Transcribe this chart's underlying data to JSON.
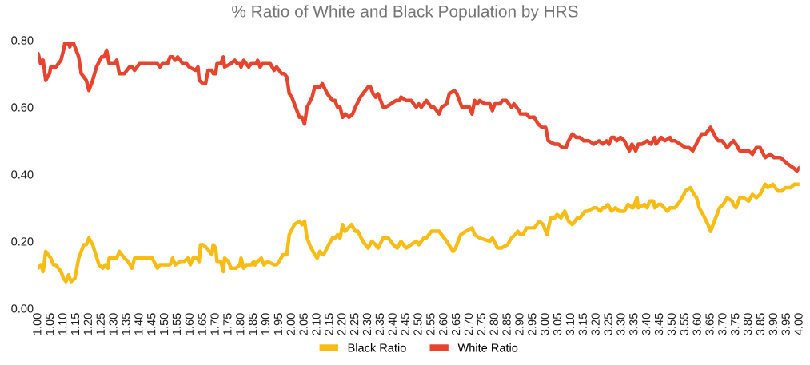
{
  "chart_data": {
    "type": "line",
    "title": "% Ratio of White and Black Population by HRS",
    "xlim": [
      1.0,
      4.0
    ],
    "xticks": [
      {
        "value": 1.0,
        "label": "1.00"
      },
      {
        "value": 1.05,
        "label": "1.05"
      },
      {
        "value": 1.1,
        "label": "1.10"
      },
      {
        "value": 1.15,
        "label": "1.15"
      },
      {
        "value": 1.2,
        "label": "1.20"
      },
      {
        "value": 1.25,
        "label": "1.25"
      },
      {
        "value": 1.3,
        "label": "1.30"
      },
      {
        "value": 1.35,
        "label": "1.35"
      },
      {
        "value": 1.4,
        "label": "1.40"
      },
      {
        "value": 1.45,
        "label": "1.45"
      },
      {
        "value": 1.5,
        "label": "1.50"
      },
      {
        "value": 1.55,
        "label": "1.55"
      },
      {
        "value": 1.6,
        "label": "1.60"
      },
      {
        "value": 1.65,
        "label": "1.65"
      },
      {
        "value": 1.7,
        "label": "1.70"
      },
      {
        "value": 1.75,
        "label": "1.75"
      },
      {
        "value": 1.8,
        "label": "1.80"
      },
      {
        "value": 1.85,
        "label": "1.85"
      },
      {
        "value": 1.9,
        "label": "1.90"
      },
      {
        "value": 1.95,
        "label": "1.95"
      },
      {
        "value": 2.0,
        "label": "2.00"
      },
      {
        "value": 2.05,
        "label": "2.05"
      },
      {
        "value": 2.1,
        "label": "2.10"
      },
      {
        "value": 2.15,
        "label": "2.15"
      },
      {
        "value": 2.2,
        "label": "2.20"
      },
      {
        "value": 2.25,
        "label": "2.25"
      },
      {
        "value": 2.3,
        "label": "2.30"
      },
      {
        "value": 2.35,
        "label": "2.35"
      },
      {
        "value": 2.4,
        "label": "2.40"
      },
      {
        "value": 2.45,
        "label": "2.45"
      },
      {
        "value": 2.5,
        "label": "2.50"
      },
      {
        "value": 2.55,
        "label": "2.55"
      },
      {
        "value": 2.6,
        "label": "2.60"
      },
      {
        "value": 2.65,
        "label": "2.65"
      },
      {
        "value": 2.7,
        "label": "2.70"
      },
      {
        "value": 2.75,
        "label": "2.75"
      },
      {
        "value": 2.8,
        "label": "2.80"
      },
      {
        "value": 2.85,
        "label": "2.85"
      },
      {
        "value": 2.9,
        "label": "2.90"
      },
      {
        "value": 2.95,
        "label": "2.95"
      },
      {
        "value": 3.0,
        "label": "3.00"
      },
      {
        "value": 3.05,
        "label": "3.05"
      },
      {
        "value": 3.1,
        "label": "3.10"
      },
      {
        "value": 3.15,
        "label": "3.15"
      },
      {
        "value": 3.2,
        "label": "3.20"
      },
      {
        "value": 3.25,
        "label": "3.25"
      },
      {
        "value": 3.3,
        "label": "3.30"
      },
      {
        "value": 3.35,
        "label": "3.35"
      },
      {
        "value": 3.4,
        "label": "3.40"
      },
      {
        "value": 3.45,
        "label": "3.45"
      },
      {
        "value": 3.5,
        "label": "3.50"
      },
      {
        "value": 3.55,
        "label": "3.55"
      },
      {
        "value": 3.6,
        "label": "3.60"
      },
      {
        "value": 3.65,
        "label": "3.65"
      },
      {
        "value": 3.7,
        "label": "3.70"
      },
      {
        "value": 3.75,
        "label": "3.75"
      },
      {
        "value": 3.8,
        "label": "3.80"
      },
      {
        "value": 3.85,
        "label": "3.85"
      },
      {
        "value": 3.9,
        "label": "3.90"
      },
      {
        "value": 3.95,
        "label": "3.95"
      },
      {
        "value": 4.0,
        "label": "4.00"
      }
    ],
    "ylim": [
      0,
      0.8
    ],
    "yticks": [
      {
        "value": 0,
        "label": "0.00"
      },
      {
        "value": 0.2,
        "label": "0.20"
      },
      {
        "value": 0.4,
        "label": "0.40"
      },
      {
        "value": 0.6,
        "label": "0.60"
      },
      {
        "value": 0.8,
        "label": "0.80"
      }
    ],
    "grid": false,
    "legend": "bottom",
    "marker": "none",
    "line_style": "solid",
    "series": [
      {
        "name": "Black Ratio",
        "color": "#f9bc15",
        "x": [
          1.0,
          1.01,
          1.02,
          1.03,
          1.05,
          1.06,
          1.07,
          1.09,
          1.1,
          1.11,
          1.12,
          1.13,
          1.145,
          1.16,
          1.18,
          1.19,
          1.2,
          1.215,
          1.24,
          1.255,
          1.265,
          1.275,
          1.28,
          1.3,
          1.31,
          1.32,
          1.34,
          1.355,
          1.37,
          1.38,
          1.39,
          1.4,
          1.42,
          1.435,
          1.45,
          1.47,
          1.48,
          1.5,
          1.52,
          1.53,
          1.54,
          1.56,
          1.575,
          1.59,
          1.6,
          1.61,
          1.625,
          1.635,
          1.64,
          1.65,
          1.665,
          1.685,
          1.69,
          1.7,
          1.705,
          1.72,
          1.73,
          1.735,
          1.75,
          1.76,
          1.78,
          1.795,
          1.8,
          1.81,
          1.82,
          1.84,
          1.85,
          1.855,
          1.865,
          1.88,
          1.89,
          1.905,
          1.93,
          1.94,
          1.95,
          1.965,
          1.98,
          1.99,
          2.01,
          2.03,
          2.04,
          2.05,
          2.06,
          2.07,
          2.09,
          2.1,
          2.11,
          2.125,
          2.145,
          2.16,
          2.17,
          2.18,
          2.19,
          2.2,
          2.21,
          2.235,
          2.25,
          2.26,
          2.28,
          2.3,
          2.315,
          2.33,
          2.34,
          2.36,
          2.38,
          2.4,
          2.415,
          2.43,
          2.45,
          2.47,
          2.49,
          2.5,
          2.52,
          2.53,
          2.55,
          2.57,
          2.58,
          2.61,
          2.635,
          2.645,
          2.665,
          2.685,
          2.71,
          2.72,
          2.74,
          2.78,
          2.79,
          2.81,
          2.825,
          2.85,
          2.865,
          2.88,
          2.89,
          2.9,
          2.91,
          2.925,
          2.935,
          2.955,
          2.975,
          2.99,
          3.005,
          3.02,
          3.035,
          3.045,
          3.06,
          3.075,
          3.09,
          3.105,
          3.125,
          3.135,
          3.155,
          3.165,
          3.19,
          3.2,
          3.215,
          3.225,
          3.235,
          3.245,
          3.26,
          3.275,
          3.29,
          3.3,
          3.31,
          3.325,
          3.34,
          3.345,
          3.36,
          3.365,
          3.39,
          3.4,
          3.41,
          3.425,
          3.43,
          3.445,
          3.455,
          3.48,
          3.49,
          3.51,
          3.53,
          3.545,
          3.55,
          3.57,
          3.585,
          3.595,
          3.605,
          3.62,
          3.64,
          3.65,
          3.66,
          3.675,
          3.685,
          3.7,
          3.715,
          3.735,
          3.74,
          3.75,
          3.765,
          3.78,
          3.8,
          3.815,
          3.83,
          3.845,
          3.865,
          3.875,
          3.895,
          3.915,
          3.93,
          3.945,
          3.965,
          3.98,
          4.0
        ],
        "values": [
          0.12,
          0.13,
          0.11,
          0.17,
          0.15,
          0.13,
          0.13,
          0.11,
          0.09,
          0.08,
          0.1,
          0.08,
          0.09,
          0.15,
          0.19,
          0.19,
          0.21,
          0.19,
          0.13,
          0.12,
          0.13,
          0.12,
          0.15,
          0.15,
          0.15,
          0.17,
          0.15,
          0.14,
          0.12,
          0.15,
          0.15,
          0.15,
          0.15,
          0.15,
          0.15,
          0.12,
          0.13,
          0.13,
          0.13,
          0.15,
          0.13,
          0.14,
          0.14,
          0.15,
          0.13,
          0.15,
          0.15,
          0.14,
          0.19,
          0.19,
          0.18,
          0.16,
          0.19,
          0.18,
          0.14,
          0.14,
          0.11,
          0.15,
          0.14,
          0.12,
          0.12,
          0.13,
          0.15,
          0.12,
          0.13,
          0.13,
          0.14,
          0.13,
          0.14,
          0.15,
          0.13,
          0.14,
          0.13,
          0.13,
          0.14,
          0.16,
          0.16,
          0.22,
          0.25,
          0.26,
          0.25,
          0.26,
          0.21,
          0.19,
          0.16,
          0.15,
          0.17,
          0.16,
          0.19,
          0.21,
          0.21,
          0.22,
          0.21,
          0.25,
          0.23,
          0.25,
          0.23,
          0.23,
          0.2,
          0.18,
          0.2,
          0.19,
          0.18,
          0.21,
          0.21,
          0.19,
          0.18,
          0.2,
          0.18,
          0.19,
          0.2,
          0.19,
          0.21,
          0.21,
          0.23,
          0.23,
          0.23,
          0.2,
          0.17,
          0.18,
          0.22,
          0.23,
          0.24,
          0.22,
          0.21,
          0.2,
          0.21,
          0.18,
          0.18,
          0.19,
          0.21,
          0.22,
          0.23,
          0.22,
          0.22,
          0.24,
          0.24,
          0.24,
          0.26,
          0.25,
          0.22,
          0.27,
          0.27,
          0.28,
          0.27,
          0.29,
          0.26,
          0.25,
          0.27,
          0.27,
          0.29,
          0.29,
          0.3,
          0.3,
          0.29,
          0.3,
          0.3,
          0.31,
          0.29,
          0.3,
          0.29,
          0.29,
          0.29,
          0.31,
          0.3,
          0.3,
          0.33,
          0.3,
          0.31,
          0.3,
          0.32,
          0.32,
          0.3,
          0.31,
          0.31,
          0.29,
          0.3,
          0.3,
          0.32,
          0.34,
          0.35,
          0.36,
          0.34,
          0.33,
          0.3,
          0.28,
          0.25,
          0.23,
          0.25,
          0.28,
          0.3,
          0.31,
          0.33,
          0.32,
          0.31,
          0.3,
          0.33,
          0.33,
          0.32,
          0.34,
          0.33,
          0.34,
          0.37,
          0.36,
          0.37,
          0.35,
          0.35,
          0.36,
          0.36,
          0.37,
          0.37
        ]
      },
      {
        "name": "White Ratio",
        "color": "#e8432d",
        "x": [
          1.0,
          1.01,
          1.02,
          1.03,
          1.045,
          1.05,
          1.07,
          1.09,
          1.1,
          1.105,
          1.12,
          1.125,
          1.13,
          1.14,
          1.16,
          1.17,
          1.18,
          1.19,
          1.2,
          1.215,
          1.23,
          1.25,
          1.26,
          1.27,
          1.28,
          1.3,
          1.31,
          1.32,
          1.34,
          1.36,
          1.37,
          1.38,
          1.4,
          1.42,
          1.435,
          1.455,
          1.47,
          1.48,
          1.49,
          1.51,
          1.52,
          1.53,
          1.54,
          1.55,
          1.57,
          1.585,
          1.595,
          1.62,
          1.63,
          1.635,
          1.65,
          1.66,
          1.67,
          1.685,
          1.69,
          1.7,
          1.705,
          1.72,
          1.73,
          1.735,
          1.76,
          1.775,
          1.785,
          1.795,
          1.8,
          1.81,
          1.82,
          1.83,
          1.84,
          1.86,
          1.865,
          1.875,
          1.885,
          1.9,
          1.915,
          1.93,
          1.94,
          1.96,
          1.97,
          1.98,
          1.99,
          2.0,
          2.03,
          2.04,
          2.05,
          2.06,
          2.08,
          2.09,
          2.11,
          2.12,
          2.14,
          2.16,
          2.17,
          2.18,
          2.19,
          2.2,
          2.21,
          2.225,
          2.24,
          2.25,
          2.27,
          2.28,
          2.3,
          2.31,
          2.32,
          2.33,
          2.34,
          2.36,
          2.37,
          2.39,
          2.41,
          2.425,
          2.43,
          2.45,
          2.47,
          2.49,
          2.5,
          2.51,
          2.53,
          2.55,
          2.56,
          2.58,
          2.59,
          2.61,
          2.62,
          2.64,
          2.65,
          2.67,
          2.69,
          2.7,
          2.71,
          2.72,
          2.73,
          2.74,
          2.76,
          2.78,
          2.79,
          2.8,
          2.82,
          2.83,
          2.845,
          2.855,
          2.865,
          2.875,
          2.895,
          2.9,
          2.91,
          2.925,
          2.935,
          2.955,
          2.97,
          2.985,
          3.0,
          3.01,
          3.035,
          3.05,
          3.065,
          3.08,
          3.09,
          3.105,
          3.12,
          3.135,
          3.15,
          3.17,
          3.19,
          3.21,
          3.225,
          3.24,
          3.25,
          3.26,
          3.27,
          3.28,
          3.295,
          3.31,
          3.33,
          3.34,
          3.355,
          3.365,
          3.38,
          3.4,
          3.415,
          3.43,
          3.435,
          3.455,
          3.47,
          3.49,
          3.495,
          3.51,
          3.53,
          3.55,
          3.565,
          3.58,
          3.6,
          3.615,
          3.63,
          3.65,
          3.67,
          3.68,
          3.695,
          3.715,
          3.74,
          3.75,
          3.765,
          3.785,
          3.8,
          3.815,
          3.83,
          3.845,
          3.865,
          3.885,
          3.9,
          3.915,
          3.925,
          3.94,
          3.955,
          3.975,
          3.99,
          4.0
        ],
        "values": [
          0.76,
          0.73,
          0.74,
          0.68,
          0.7,
          0.72,
          0.72,
          0.74,
          0.77,
          0.79,
          0.79,
          0.78,
          0.79,
          0.79,
          0.75,
          0.7,
          0.69,
          0.68,
          0.65,
          0.68,
          0.72,
          0.75,
          0.75,
          0.77,
          0.73,
          0.73,
          0.74,
          0.7,
          0.7,
          0.72,
          0.72,
          0.71,
          0.73,
          0.73,
          0.73,
          0.73,
          0.73,
          0.72,
          0.73,
          0.73,
          0.75,
          0.75,
          0.74,
          0.75,
          0.73,
          0.73,
          0.72,
          0.71,
          0.72,
          0.68,
          0.67,
          0.67,
          0.71,
          0.71,
          0.7,
          0.7,
          0.73,
          0.73,
          0.75,
          0.72,
          0.73,
          0.74,
          0.73,
          0.73,
          0.72,
          0.74,
          0.73,
          0.72,
          0.73,
          0.73,
          0.74,
          0.72,
          0.73,
          0.73,
          0.73,
          0.71,
          0.72,
          0.7,
          0.7,
          0.69,
          0.64,
          0.63,
          0.57,
          0.57,
          0.55,
          0.6,
          0.63,
          0.66,
          0.66,
          0.67,
          0.64,
          0.62,
          0.62,
          0.6,
          0.6,
          0.57,
          0.58,
          0.57,
          0.58,
          0.6,
          0.63,
          0.64,
          0.66,
          0.66,
          0.64,
          0.63,
          0.64,
          0.6,
          0.6,
          0.61,
          0.62,
          0.62,
          0.63,
          0.62,
          0.62,
          0.6,
          0.61,
          0.6,
          0.62,
          0.6,
          0.6,
          0.58,
          0.6,
          0.61,
          0.64,
          0.65,
          0.64,
          0.6,
          0.6,
          0.6,
          0.58,
          0.62,
          0.61,
          0.62,
          0.61,
          0.61,
          0.59,
          0.61,
          0.61,
          0.62,
          0.62,
          0.61,
          0.6,
          0.61,
          0.59,
          0.58,
          0.58,
          0.58,
          0.57,
          0.57,
          0.55,
          0.54,
          0.54,
          0.5,
          0.49,
          0.49,
          0.48,
          0.48,
          0.5,
          0.52,
          0.51,
          0.51,
          0.5,
          0.5,
          0.49,
          0.5,
          0.49,
          0.5,
          0.49,
          0.51,
          0.51,
          0.5,
          0.51,
          0.5,
          0.47,
          0.49,
          0.47,
          0.49,
          0.49,
          0.5,
          0.49,
          0.51,
          0.49,
          0.51,
          0.5,
          0.51,
          0.5,
          0.5,
          0.49,
          0.48,
          0.48,
          0.47,
          0.5,
          0.52,
          0.52,
          0.54,
          0.51,
          0.5,
          0.5,
          0.48,
          0.5,
          0.49,
          0.47,
          0.47,
          0.47,
          0.46,
          0.48,
          0.48,
          0.45,
          0.46,
          0.45,
          0.45,
          0.45,
          0.44,
          0.43,
          0.42,
          0.41,
          0.42
        ]
      }
    ]
  }
}
